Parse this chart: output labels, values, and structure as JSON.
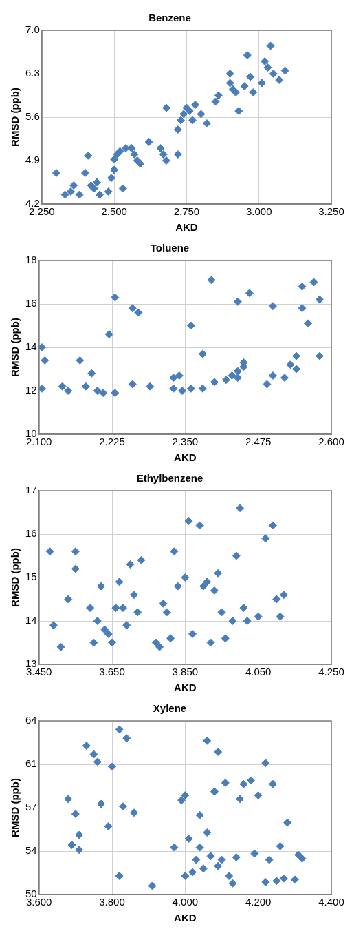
{
  "chart_data": [
    {
      "type": "scatter",
      "title": "Benzene",
      "xlabel": "AKD",
      "ylabel": "RMSD (ppb)",
      "marker": "diamond",
      "grid": true,
      "legend": false,
      "xlim": [
        2.25,
        3.25
      ],
      "xticks": [
        {
          "value": 2.25,
          "label": "2.250"
        },
        {
          "value": 2.5,
          "label": "2.500"
        },
        {
          "value": 2.75,
          "label": "2.750"
        },
        {
          "value": 3,
          "label": "3.000"
        },
        {
          "value": 3.25,
          "label": "3.250"
        }
      ],
      "ylim": [
        4.2,
        7.0
      ],
      "yticks": [
        4.2,
        4.9,
        5.6,
        6.3,
        {
          "value": 7,
          "label": "7.0"
        }
      ],
      "series": [
        {
          "color": "#4a7ebb",
          "x": [
            2.3,
            2.33,
            2.35,
            2.36,
            2.38,
            2.4,
            2.41,
            2.42,
            2.43,
            2.44,
            2.45,
            2.48,
            2.49,
            2.5,
            2.5,
            2.51,
            2.52,
            2.53,
            2.54,
            2.56,
            2.57,
            2.58,
            2.59,
            2.62,
            2.66,
            2.67,
            2.68,
            2.68,
            2.72,
            2.72,
            2.73,
            2.74,
            2.75,
            2.76,
            2.77,
            2.78,
            2.8,
            2.82,
            2.85,
            2.86,
            2.9,
            2.9,
            2.91,
            2.92,
            2.93,
            2.95,
            2.96,
            2.97,
            2.98,
            3.01,
            3.02,
            3.03,
            3.04,
            3.05,
            3.07,
            3.09
          ],
          "values": [
            4.7,
            4.35,
            4.4,
            4.5,
            4.35,
            4.7,
            4.98,
            4.5,
            4.45,
            4.55,
            4.35,
            4.4,
            4.62,
            4.75,
            4.92,
            5.0,
            5.05,
            4.45,
            5.1,
            5.1,
            5.0,
            4.9,
            4.85,
            5.2,
            5.1,
            5.0,
            4.9,
            5.75,
            5.0,
            5.4,
            5.55,
            5.65,
            5.75,
            5.7,
            5.55,
            5.8,
            5.65,
            5.5,
            5.85,
            5.95,
            6.15,
            6.3,
            6.05,
            6.0,
            5.7,
            6.1,
            6.6,
            6.25,
            6.0,
            6.15,
            6.5,
            6.4,
            6.75,
            6.3,
            6.2,
            6.35
          ]
        }
      ]
    },
    {
      "type": "scatter",
      "title": "Toluene",
      "xlabel": "AKD",
      "ylabel": "RMSD (ppb)",
      "marker": "diamond",
      "grid": true,
      "legend": false,
      "xlim": [
        2.1,
        2.6
      ],
      "xticks": [
        {
          "value": 2.1,
          "label": "2.100"
        },
        {
          "value": 2.225,
          "label": "2.225"
        },
        {
          "value": 2.35,
          "label": "2.350"
        },
        {
          "value": 2.475,
          "label": "2.475"
        },
        {
          "value": 2.6,
          "label": "2.600"
        }
      ],
      "ylim": [
        10,
        18
      ],
      "yticks": [
        10,
        12,
        14,
        16,
        18
      ],
      "series": [
        {
          "color": "#4a7ebb",
          "x": [
            2.105,
            2.11,
            2.105,
            2.14,
            2.15,
            2.17,
            2.18,
            2.19,
            2.2,
            2.21,
            2.22,
            2.23,
            2.23,
            2.26,
            2.27,
            2.26,
            2.29,
            2.33,
            2.34,
            2.33,
            2.345,
            2.36,
            2.36,
            2.38,
            2.38,
            2.395,
            2.4,
            2.42,
            2.43,
            2.44,
            2.44,
            2.45,
            2.45,
            2.44,
            2.46,
            2.49,
            2.5,
            2.5,
            2.52,
            2.53,
            2.54,
            2.54,
            2.55,
            2.55,
            2.56,
            2.57,
            2.58,
            2.58
          ],
          "values": [
            14.0,
            13.4,
            12.1,
            12.2,
            12.0,
            13.4,
            12.2,
            12.8,
            12.0,
            11.9,
            14.6,
            11.9,
            16.3,
            15.8,
            15.6,
            12.3,
            12.2,
            12.6,
            12.7,
            12.1,
            12.0,
            12.1,
            15.0,
            13.7,
            12.1,
            17.1,
            12.4,
            12.5,
            12.7,
            12.9,
            12.6,
            13.1,
            13.3,
            16.1,
            16.5,
            12.3,
            12.7,
            15.9,
            12.6,
            13.2,
            13.6,
            13.0,
            16.8,
            15.8,
            15.1,
            17.0,
            16.2,
            13.6
          ]
        }
      ]
    },
    {
      "type": "scatter",
      "title": "Ethylbenzene",
      "xlabel": "AKD",
      "ylabel": "RMSD (ppb)",
      "marker": "diamond",
      "grid": true,
      "legend": false,
      "xlim": [
        3.45,
        4.25
      ],
      "xticks": [
        {
          "value": 3.45,
          "label": "3.450"
        },
        {
          "value": 3.65,
          "label": "3.650"
        },
        {
          "value": 3.85,
          "label": "3.850"
        },
        {
          "value": 4.05,
          "label": "4.050"
        },
        {
          "value": 4.25,
          "label": "4.250"
        }
      ],
      "ylim": [
        13,
        17
      ],
      "yticks": [
        13,
        14,
        15,
        16,
        17
      ],
      "series": [
        {
          "color": "#4a7ebb",
          "x": [
            3.48,
            3.49,
            3.51,
            3.53,
            3.55,
            3.55,
            3.59,
            3.6,
            3.61,
            3.62,
            3.63,
            3.64,
            3.65,
            3.66,
            3.67,
            3.68,
            3.69,
            3.7,
            3.71,
            3.72,
            3.73,
            3.77,
            3.78,
            3.79,
            3.8,
            3.81,
            3.82,
            3.83,
            3.85,
            3.86,
            3.87,
            3.89,
            3.9,
            3.91,
            3.92,
            3.93,
            3.94,
            3.95,
            3.96,
            3.98,
            3.99,
            4.0,
            4.01,
            4.02,
            4.05,
            4.07,
            4.09,
            4.1,
            4.11,
            4.12
          ],
          "values": [
            15.6,
            13.9,
            13.4,
            14.5,
            15.6,
            15.2,
            14.3,
            13.5,
            14.0,
            14.8,
            13.8,
            13.7,
            13.5,
            14.3,
            14.9,
            14.3,
            13.9,
            15.3,
            14.6,
            14.2,
            15.4,
            13.5,
            13.4,
            14.4,
            14.2,
            13.6,
            15.6,
            14.8,
            15.0,
            16.3,
            13.7,
            16.2,
            14.8,
            14.9,
            13.5,
            14.7,
            15.1,
            14.2,
            13.6,
            14.0,
            15.5,
            16.6,
            14.3,
            14.0,
            14.1,
            15.9,
            16.2,
            14.5,
            14.1,
            14.6
          ]
        }
      ]
    },
    {
      "type": "scatter",
      "title": "Xylene",
      "xlabel": "AKD",
      "ylabel": "RMSD (ppb)",
      "marker": "diamond",
      "grid": true,
      "legend": false,
      "xlim": [
        3.6,
        4.4
      ],
      "xticks": [
        {
          "value": 3.6,
          "label": "3.600"
        },
        {
          "value": 3.8,
          "label": "3.800"
        },
        {
          "value": 4.0,
          "label": "4.000"
        },
        {
          "value": 4.2,
          "label": "4.200"
        },
        {
          "value": 4.4,
          "label": "4.400"
        }
      ],
      "ylim": [
        50,
        64
      ],
      "yticks": [
        50,
        {
          "value": 53.5,
          "label": "54"
        },
        57,
        {
          "value": 60.5,
          "label": "61"
        },
        64
      ],
      "series": [
        {
          "color": "#4a7ebb",
          "x": [
            3.68,
            3.69,
            3.7,
            3.71,
            3.71,
            3.73,
            3.75,
            3.76,
            3.77,
            3.79,
            3.8,
            3.82,
            3.82,
            3.83,
            3.84,
            3.86,
            3.91,
            3.97,
            3.99,
            4.0,
            4.0,
            4.01,
            4.02,
            4.03,
            4.04,
            4.04,
            4.05,
            4.06,
            4.06,
            4.07,
            4.08,
            4.09,
            4.09,
            4.1,
            4.11,
            4.12,
            4.13,
            4.14,
            4.15,
            4.16,
            4.18,
            4.19,
            4.2,
            4.22,
            4.22,
            4.23,
            4.24,
            4.25,
            4.26,
            4.27,
            4.28,
            4.3,
            4.31,
            4.32
          ],
          "values": [
            57.7,
            54.0,
            56.5,
            54.8,
            53.6,
            62.0,
            61.3,
            60.7,
            57.3,
            55.5,
            60.3,
            63.3,
            51.5,
            57.1,
            62.6,
            56.6,
            50.7,
            53.8,
            57.6,
            58.0,
            51.5,
            54.5,
            51.8,
            52.8,
            56.4,
            53.8,
            52.1,
            55.0,
            62.4,
            53.1,
            58.3,
            61.5,
            52.3,
            52.8,
            59.0,
            51.5,
            50.9,
            53.0,
            57.7,
            58.9,
            59.2,
            53.3,
            58.0,
            51.0,
            60.6,
            52.8,
            58.9,
            51.1,
            53.9,
            51.3,
            55.8,
            51.2,
            53.2,
            52.9
          ]
        }
      ]
    }
  ]
}
